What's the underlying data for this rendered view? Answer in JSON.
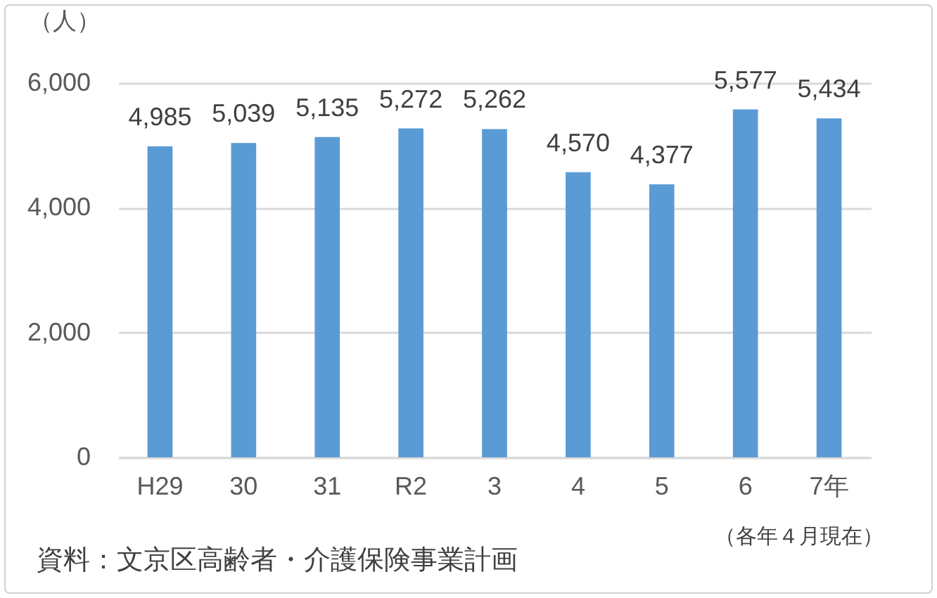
{
  "chart_data": {
    "type": "bar",
    "ylabel": "（人）",
    "categories": [
      "H29",
      "30",
      "31",
      "R2",
      "3",
      "4",
      "5",
      "6",
      "7年"
    ],
    "values": [
      4985,
      5039,
      5135,
      5272,
      5262,
      4570,
      4377,
      5577,
      5434
    ],
    "color": "#5b9bd5",
    "value_labels": [
      "4,985",
      "5,039",
      "5,135",
      "5,272",
      "5,262",
      "4,570",
      "4,377",
      "5,577",
      "5,434"
    ],
    "ylim": [
      0,
      6000
    ],
    "yticks": [
      {
        "value": 0,
        "label": "0"
      },
      {
        "value": 2000,
        "label": "2,000"
      },
      {
        "value": 4000,
        "label": "4,000"
      },
      {
        "value": 6000,
        "label": "6,000"
      }
    ],
    "grid": "y",
    "annotations": [
      "（各年４月現在）",
      "資料：文京区高齢者・介護保険事業計画"
    ]
  }
}
